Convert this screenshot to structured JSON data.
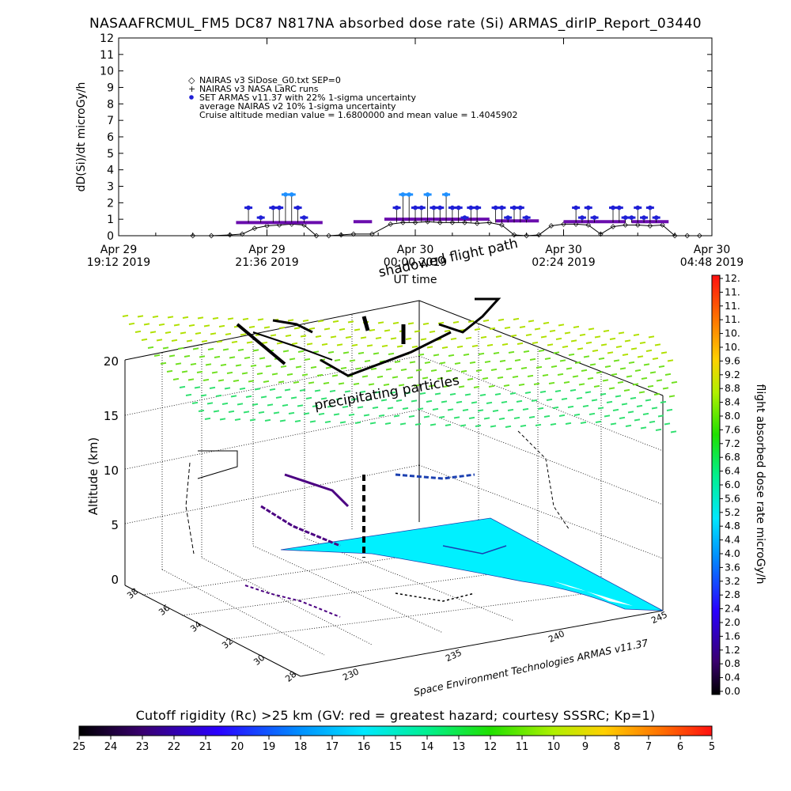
{
  "title": "NASAAFRCMUL_FM5 DC87 N817NA absorbed dose rate (Si) ARMAS_dirIP_Report_03440",
  "colors": {
    "armas": "#1f1fd6",
    "armas_high": "#1e90ff",
    "nairas_v2": "#6a0dad",
    "nairas_v3": "#000000",
    "nairas_grid": "#7fe000",
    "ground_region": "#00f0ff",
    "track_black": "#000000",
    "track_purple": "#4b0082"
  },
  "chart_data": [
    {
      "type": "line",
      "name": "dose-rate-timeseries",
      "ylabel": "dD(Si)/dt microGy/h",
      "xlabel": "UT time",
      "ylim": [
        0,
        12
      ],
      "yticks": [
        "0",
        "1",
        "2",
        "3",
        "4",
        "5",
        "6",
        "7",
        "8",
        "9",
        "10",
        "11",
        "12"
      ],
      "xticks": [
        {
          "line1": "Apr 29",
          "line2": "19:12 2019"
        },
        {
          "line1": "Apr 29",
          "line2": "21:36 2019"
        },
        {
          "line1": "Apr 30",
          "line2": "00:00 2019"
        },
        {
          "line1": "Apr 30",
          "line2": "02:24 2019"
        },
        {
          "line1": "Apr 30",
          "line2": "04:48 2019"
        }
      ],
      "xlim_hours": [
        19.2,
        28.8
      ],
      "legend": [
        {
          "marker": "◇",
          "text": "NAIRAS v3 SiDose_G0.txt SEP=0"
        },
        {
          "marker": "+",
          "text": "NAIRAS v3 NASA LaRC runs"
        },
        {
          "marker": "●",
          "text": "SET ARMAS v11.37 with 22% 1-sigma uncertainty"
        },
        {
          "marker": "",
          "text": "average NAIRAS v2 10% 1-sigma uncertainty"
        },
        {
          "marker": "",
          "text": "Cruise altitude median value = 1.6800000 and mean value = 1.4045902"
        }
      ],
      "legend_position": "top-left",
      "series": [
        {
          "name": "NAIRAS v3 SiDose_G0.txt SEP=0",
          "x": [
            20.4,
            20.7,
            21.0,
            21.2,
            21.4,
            21.6,
            21.8,
            22.0,
            22.2,
            22.4,
            22.6,
            22.8,
            23.0,
            23.3,
            23.6,
            23.8,
            24.0,
            24.2,
            24.4,
            24.6,
            24.8,
            25.0,
            25.2,
            25.4,
            25.6,
            25.8,
            26.0,
            26.2,
            26.4,
            26.6,
            26.8,
            27.0,
            27.2,
            27.4,
            27.6,
            27.8,
            28.0,
            28.2,
            28.4,
            28.6
          ],
          "values": [
            0.0,
            0.0,
            0.05,
            0.1,
            0.45,
            0.6,
            0.65,
            0.7,
            0.65,
            0.0,
            0.0,
            0.05,
            0.1,
            0.1,
            0.7,
            0.8,
            0.8,
            0.85,
            0.8,
            0.8,
            0.8,
            0.75,
            0.8,
            0.65,
            0.05,
            0.0,
            0.05,
            0.6,
            0.7,
            0.7,
            0.65,
            0.1,
            0.55,
            0.65,
            0.65,
            0.6,
            0.65,
            0.0,
            0.0,
            0.0
          ]
        },
        {
          "name": "average NAIRAS v2",
          "segments": [
            [
              21.1,
              22.5,
              0.8
            ],
            [
              23.0,
              23.3,
              0.85
            ],
            [
              23.5,
              25.2,
              1.0
            ],
            [
              25.3,
              26.0,
              0.9
            ],
            [
              26.4,
              27.4,
              0.85
            ],
            [
              27.5,
              28.1,
              0.85
            ]
          ]
        },
        {
          "name": "SET ARMAS v11.37",
          "x": [
            21.3,
            21.5,
            21.7,
            21.8,
            21.9,
            22.0,
            22.1,
            22.2,
            23.7,
            23.8,
            23.9,
            24.0,
            24.1,
            24.2,
            24.3,
            24.4,
            24.5,
            24.6,
            24.7,
            24.8,
            24.9,
            25.0,
            25.3,
            25.4,
            25.5,
            25.6,
            25.7,
            25.8,
            26.6,
            26.7,
            26.8,
            26.9,
            27.2,
            27.3,
            27.4,
            27.5,
            27.6,
            27.7,
            27.8,
            27.9
          ],
          "values": [
            1.7,
            1.1,
            1.7,
            1.7,
            2.5,
            2.5,
            1.7,
            1.1,
            1.7,
            2.5,
            2.5,
            1.7,
            1.7,
            2.5,
            1.7,
            1.7,
            2.5,
            1.7,
            1.7,
            1.1,
            1.7,
            1.7,
            1.7,
            1.7,
            1.1,
            1.7,
            1.7,
            1.1,
            1.7,
            1.1,
            1.7,
            1.1,
            1.7,
            1.7,
            1.1,
            1.1,
            1.7,
            1.1,
            1.7,
            1.1
          ]
        }
      ]
    },
    {
      "type": "scatter",
      "name": "altitude-3d-scene",
      "zlabel": "Altitude (km)",
      "zticks": [
        "0",
        "5",
        "10",
        "15",
        "20"
      ],
      "latticks": [
        "28",
        "30",
        "32",
        "34",
        "36",
        "38"
      ],
      "lonticks": [
        "230",
        "235",
        "240",
        "245"
      ],
      "annotations": [
        "shadowed flight path",
        "precipitating particles"
      ],
      "credit": "Space Environment Technologies ARMAS v11.37",
      "grid": true
    },
    {
      "type": "heatmap",
      "name": "dose-rate-colorbar",
      "label": "flight absorbed dose rate microGy/h",
      "ticks": [
        "0.0",
        "0.4",
        "0.8",
        "1.2",
        "1.6",
        "2.0",
        "2.4",
        "2.8",
        "3.2",
        "3.6",
        "4.0",
        "4.4",
        "4.8",
        "5.2",
        "5.6",
        "6.0",
        "6.4",
        "6.8",
        "7.2",
        "7.6",
        "8.0",
        "8.4",
        "8.8",
        "9.2",
        "9.6",
        "10.",
        "10.",
        "11.",
        "11.",
        "11.",
        "12."
      ],
      "range": [
        0.0,
        12.0
      ]
    },
    {
      "type": "heatmap",
      "name": "cutoff-rigidity-colorbar",
      "label": "Cutoff rigidity (Rc) >25 km (GV: red = greatest hazard; courtesy SSSRC; Kp=1)",
      "ticks": [
        "25",
        "24",
        "23",
        "22",
        "21",
        "20",
        "19",
        "18",
        "17",
        "16",
        "15",
        "14",
        "13",
        "12",
        "11",
        "10",
        "9",
        "8",
        "7",
        "6",
        "5"
      ],
      "range": [
        25,
        5
      ]
    }
  ]
}
